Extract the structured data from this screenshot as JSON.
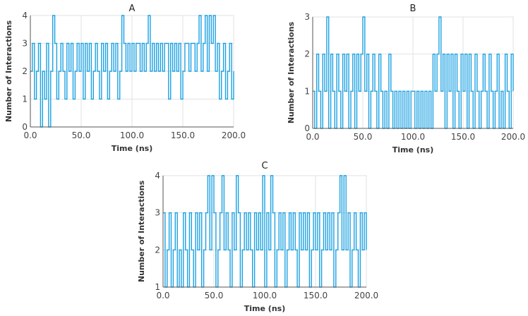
{
  "chart_data": [
    {
      "id": "A",
      "type": "line",
      "title": "A",
      "xlabel": "Time (ns)",
      "ylabel": "Number of Interactions",
      "xlim": [
        0,
        200
      ],
      "ylim": [
        0,
        4
      ],
      "xticks": [
        "0.0",
        "50.0",
        "100.0",
        "150.0",
        "200.0"
      ],
      "yticks": [
        "0",
        "1",
        "2",
        "3",
        "4"
      ],
      "grid": true,
      "color": "#1ba1e2",
      "series": [
        {
          "x": [
            0,
            2,
            4,
            6,
            8,
            10,
            12,
            14,
            16,
            18,
            20,
            22,
            24,
            26,
            28,
            30,
            32,
            34,
            36,
            38,
            40,
            42,
            44,
            46,
            48,
            50,
            52,
            54,
            56,
            58,
            60,
            62,
            64,
            66,
            68,
            70,
            72,
            74,
            76,
            78,
            80,
            82,
            84,
            86,
            88,
            90,
            92,
            94,
            96,
            98,
            100,
            102,
            104,
            106,
            108,
            110,
            112,
            114,
            116,
            118,
            120,
            122,
            124,
            126,
            128,
            130,
            132,
            134,
            136,
            138,
            140,
            142,
            144,
            146,
            148,
            150,
            152,
            154,
            156,
            158,
            160,
            162,
            164,
            166,
            168,
            170,
            172,
            174,
            176,
            178,
            180,
            182,
            184,
            186,
            188,
            190,
            192,
            194,
            196,
            198,
            200
          ],
          "values": [
            2,
            3,
            1,
            2,
            3,
            0,
            2,
            1,
            3,
            0,
            2,
            4,
            3,
            1,
            2,
            3,
            2,
            1,
            3,
            2,
            3,
            1,
            2,
            3,
            2,
            3,
            1,
            3,
            2,
            3,
            1,
            2,
            3,
            2,
            1,
            3,
            2,
            3,
            1,
            2,
            3,
            2,
            3,
            1,
            2,
            4,
            3,
            2,
            3,
            2,
            3,
            2,
            3,
            3,
            2,
            3,
            2,
            3,
            4,
            2,
            3,
            2,
            3,
            2,
            3,
            2,
            3,
            3,
            1,
            3,
            2,
            3,
            2,
            3,
            1,
            2,
            3,
            3,
            2,
            3,
            3,
            2,
            3,
            4,
            2,
            3,
            4,
            2,
            4,
            3,
            4,
            2,
            3,
            1,
            2,
            3,
            1,
            2,
            3,
            1,
            2
          ]
        }
      ]
    },
    {
      "id": "B",
      "type": "line",
      "title": "B",
      "xlabel": "Time (ns)",
      "ylabel": "Number of Interactions",
      "xlim": [
        0,
        200
      ],
      "ylim": [
        0,
        3
      ],
      "xticks": [
        "0.0",
        "50.0",
        "100.0",
        "150.0",
        "200.0"
      ],
      "yticks": [
        "0",
        "1",
        "2",
        "3"
      ],
      "grid": true,
      "color": "#1ba1e2",
      "series": [
        {
          "x": [
            0,
            2,
            4,
            6,
            8,
            10,
            12,
            14,
            16,
            18,
            20,
            22,
            24,
            26,
            28,
            30,
            32,
            34,
            36,
            38,
            40,
            42,
            44,
            46,
            48,
            50,
            52,
            54,
            56,
            58,
            60,
            62,
            64,
            66,
            68,
            70,
            72,
            74,
            76,
            78,
            80,
            82,
            84,
            86,
            88,
            90,
            92,
            94,
            96,
            98,
            100,
            102,
            104,
            106,
            108,
            110,
            112,
            114,
            116,
            118,
            120,
            122,
            124,
            126,
            128,
            130,
            132,
            134,
            136,
            138,
            140,
            142,
            144,
            146,
            148,
            150,
            152,
            154,
            156,
            158,
            160,
            162,
            164,
            166,
            168,
            170,
            172,
            174,
            176,
            178,
            180,
            182,
            184,
            186,
            188,
            190,
            192,
            194,
            196,
            198,
            200
          ],
          "values": [
            1,
            0,
            2,
            1,
            0,
            2,
            1,
            3,
            0,
            2,
            1,
            0,
            2,
            1,
            0,
            2,
            1,
            2,
            0,
            1,
            2,
            0,
            2,
            1,
            2,
            3,
            1,
            2,
            0,
            1,
            2,
            1,
            0,
            2,
            1,
            0,
            1,
            0,
            2,
            1,
            0,
            1,
            0,
            1,
            0,
            1,
            0,
            1,
            0,
            1,
            1,
            0,
            1,
            0,
            1,
            0,
            1,
            0,
            1,
            0,
            2,
            1,
            2,
            3,
            1,
            2,
            0,
            2,
            1,
            2,
            0,
            2,
            1,
            0,
            2,
            1,
            2,
            0,
            2,
            1,
            0,
            2,
            1,
            0,
            1,
            2,
            1,
            0,
            2,
            1,
            0,
            1,
            2,
            0,
            1,
            0,
            2,
            1,
            0,
            2,
            1
          ]
        }
      ]
    },
    {
      "id": "C",
      "type": "line",
      "title": "C",
      "xlabel": "Time (ns)",
      "ylabel": "Number of Interactions",
      "xlim": [
        0,
        200
      ],
      "ylim": [
        1,
        4
      ],
      "xticks": [
        "0.0",
        "50.0",
        "100.0",
        "150.0",
        "200.0"
      ],
      "yticks": [
        "1",
        "2",
        "3",
        "4"
      ],
      "grid": true,
      "color": "#1ba1e2",
      "series": [
        {
          "x": [
            0,
            2,
            4,
            6,
            8,
            10,
            12,
            14,
            16,
            18,
            20,
            22,
            24,
            26,
            28,
            30,
            32,
            34,
            36,
            38,
            40,
            42,
            44,
            46,
            48,
            50,
            52,
            54,
            56,
            58,
            60,
            62,
            64,
            66,
            68,
            70,
            72,
            74,
            76,
            78,
            80,
            82,
            84,
            86,
            88,
            90,
            92,
            94,
            96,
            98,
            100,
            102,
            104,
            106,
            108,
            110,
            112,
            114,
            116,
            118,
            120,
            122,
            124,
            126,
            128,
            130,
            132,
            134,
            136,
            138,
            140,
            142,
            144,
            146,
            148,
            150,
            152,
            154,
            156,
            158,
            160,
            162,
            164,
            166,
            168,
            170,
            172,
            174,
            176,
            178,
            180,
            182,
            184,
            186,
            188,
            190,
            192,
            194,
            196,
            198,
            200
          ],
          "values": [
            3,
            1,
            2,
            3,
            1,
            2,
            3,
            1,
            2,
            1,
            3,
            2,
            1,
            3,
            2,
            1,
            3,
            2,
            3,
            1,
            2,
            3,
            4,
            2,
            4,
            3,
            1,
            2,
            3,
            4,
            2,
            3,
            2,
            1,
            3,
            2,
            4,
            3,
            1,
            2,
            3,
            2,
            3,
            2,
            1,
            3,
            2,
            3,
            2,
            4,
            1,
            3,
            2,
            4,
            3,
            1,
            2,
            3,
            2,
            3,
            1,
            2,
            3,
            2,
            3,
            2,
            1,
            3,
            2,
            3,
            2,
            3,
            1,
            2,
            3,
            2,
            3,
            1,
            2,
            3,
            2,
            3,
            2,
            3,
            1,
            2,
            3,
            4,
            2,
            4,
            2,
            3,
            1,
            2,
            3,
            2,
            1,
            3,
            2,
            3,
            2
          ]
        }
      ]
    }
  ]
}
